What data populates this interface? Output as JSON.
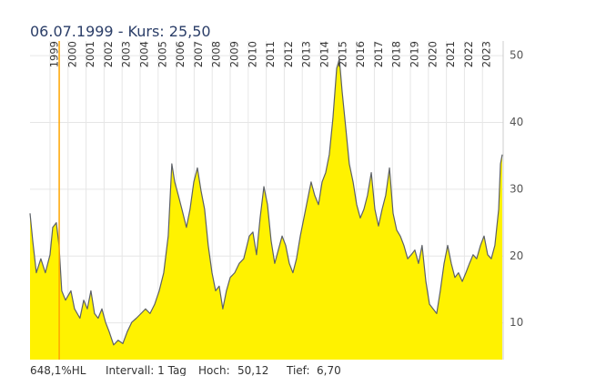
{
  "chart_data": {
    "type": "area",
    "title": "06.07.1999  -  Kurs: 25,50",
    "cursor_x": 1999.51,
    "footer": [
      "648,1%HL",
      "Intervall: 1 Tag",
      "Hoch:",
      "50,12",
      "Tief:",
      "6,70"
    ],
    "x": [
      1997.89,
      1998.04,
      1998.24,
      1998.49,
      1998.74,
      1999.0,
      1999.15,
      1999.35,
      1999.5,
      1999.65,
      1999.86,
      2000.16,
      2000.36,
      2000.66,
      2000.87,
      2001.07,
      2001.27,
      2001.47,
      2001.67,
      2001.88,
      2002.08,
      2002.28,
      2002.53,
      2002.78,
      2003.04,
      2003.29,
      2003.54,
      2003.79,
      2004.05,
      2004.3,
      2004.55,
      2004.81,
      2005.06,
      2005.31,
      2005.56,
      2005.76,
      2005.92,
      2006.12,
      2006.32,
      2006.57,
      2006.77,
      2006.98,
      2007.18,
      2007.38,
      2007.58,
      2007.78,
      2007.99,
      2008.19,
      2008.39,
      2008.59,
      2008.79,
      2009.0,
      2009.25,
      2009.5,
      2009.75,
      2010.06,
      2010.26,
      2010.46,
      2010.66,
      2010.87,
      2011.07,
      2011.27,
      2011.47,
      2011.67,
      2011.88,
      2012.08,
      2012.28,
      2012.48,
      2012.68,
      2012.89,
      2013.09,
      2013.29,
      2013.49,
      2013.69,
      2013.9,
      2014.1,
      2014.3,
      2014.5,
      2014.7,
      2014.91,
      2015.06,
      2015.21,
      2015.41,
      2015.61,
      2015.82,
      2016.02,
      2016.22,
      2016.42,
      2016.62,
      2016.83,
      2017.03,
      2017.23,
      2017.43,
      2017.63,
      2017.84,
      2018.04,
      2018.24,
      2018.44,
      2018.64,
      2018.85,
      2019.05,
      2019.25,
      2019.45,
      2019.65,
      2019.86,
      2020.06,
      2020.26,
      2020.46,
      2020.66,
      2020.87,
      2021.07,
      2021.27,
      2021.47,
      2021.67,
      2021.88,
      2022.08,
      2022.28,
      2022.48,
      2022.68,
      2022.89,
      2023.09,
      2023.29,
      2023.49,
      2023.69,
      2023.9,
      2024.0,
      2024.1
    ],
    "series": [
      {
        "color": "#fff200",
        "line_color": "#5d6166",
        "values": [
          26.4,
          22.3,
          17.5,
          19.6,
          17.5,
          20.2,
          24.3,
          25.0,
          21.6,
          14.8,
          13.4,
          14.8,
          12.1,
          10.7,
          13.4,
          12.1,
          14.8,
          11.4,
          10.7,
          12.1,
          10.1,
          8.7,
          6.7,
          7.4,
          6.9,
          8.7,
          10.1,
          10.7,
          11.4,
          12.1,
          11.4,
          12.8,
          14.8,
          17.5,
          23.0,
          33.8,
          31.1,
          29.1,
          27.0,
          24.3,
          27.0,
          31.1,
          33.2,
          29.8,
          27.0,
          21.6,
          17.5,
          14.8,
          15.5,
          12.1,
          14.8,
          16.8,
          17.5,
          18.9,
          19.6,
          23.0,
          23.6,
          20.2,
          25.7,
          30.4,
          27.7,
          22.3,
          18.9,
          20.9,
          23.0,
          21.6,
          18.9,
          17.5,
          19.6,
          23.0,
          25.7,
          28.4,
          31.1,
          29.1,
          27.7,
          31.1,
          32.5,
          35.2,
          40.6,
          48.1,
          49.5,
          44.7,
          39.3,
          33.8,
          31.1,
          27.7,
          25.7,
          27.0,
          29.1,
          32.5,
          27.0,
          24.5,
          27.0,
          29.1,
          33.2,
          26.4,
          23.9,
          23.0,
          21.6,
          19.6,
          20.2,
          20.9,
          18.9,
          21.6,
          16.2,
          12.8,
          12.1,
          11.4,
          14.8,
          18.9,
          21.6,
          18.9,
          16.8,
          17.5,
          16.2,
          17.5,
          18.9,
          20.2,
          19.6,
          21.6,
          23.0,
          20.2,
          19.6,
          21.6,
          27.0,
          33.8,
          35.2
        ]
      }
    ],
    "cursor_color": "#ffa500",
    "xlim": [
      1997.89,
      2024.15
    ],
    "ylim": [
      4.5,
      52.2
    ],
    "xticks": [
      1999,
      2000,
      2001,
      2002,
      2003,
      2004,
      2005,
      2006,
      2007,
      2008,
      2009,
      2010,
      2011,
      2012,
      2013,
      2014,
      2015,
      2016,
      2017,
      2018,
      2019,
      2020,
      2021,
      2022,
      2023
    ],
    "yticks": [
      10,
      20,
      30,
      40,
      50
    ],
    "grid": true
  }
}
